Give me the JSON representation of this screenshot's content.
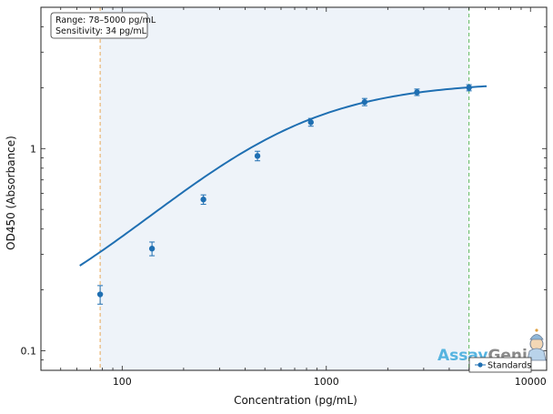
{
  "chart_data": {
    "type": "scatter",
    "title": "",
    "xlabel": "Concentration (pg/mL)",
    "ylabel": "OD450 (Absorbance)",
    "xscale": "log",
    "yscale": "log",
    "xlim": [
      40,
      12000
    ],
    "ylim": [
      0.08,
      5.0
    ],
    "xticks": [
      100,
      1000,
      10000
    ],
    "xtick_labels": [
      "100",
      "1000",
      "10000"
    ],
    "yticks": [
      0.1,
      1
    ],
    "ytick_labels": [
      "0.1",
      "1"
    ],
    "grid": false,
    "legend_placement": "bottom-right",
    "series": [
      {
        "name": "Standards",
        "color": "#1f6fb2",
        "x": [
          78,
          140,
          250,
          460,
          840,
          1540,
          2780,
          5000
        ],
        "y": [
          0.19,
          0.32,
          0.56,
          0.92,
          1.35,
          1.7,
          1.9,
          2.0
        ],
        "err_low": [
          0.02,
          0.025,
          0.03,
          0.05,
          0.06,
          0.07,
          0.07,
          0.07
        ],
        "err_high": [
          0.02,
          0.025,
          0.03,
          0.05,
          0.06,
          0.07,
          0.07,
          0.07
        ]
      }
    ],
    "fit_curve": {
      "color": "#1f6fb2",
      "x_start": 62,
      "x_end": 6100,
      "model": "4PL",
      "bottom": 0.1,
      "top": 2.15,
      "ec50": 520,
      "hill": 1.15
    },
    "range_lines": {
      "low": 78,
      "high": 5000,
      "low_color": "#e8a857",
      "high_color": "#5cb85c",
      "shade_color": "#eef3f9"
    },
    "annotation": {
      "lines": [
        "Range: 78–5000 pg/mL",
        "Sensitivity: 34 pg/mL"
      ]
    },
    "legend": {
      "entries": [
        "Standards"
      ]
    }
  },
  "watermark": {
    "part1": "Assay",
    "part2": "Genie",
    "color1": "#56b4e0",
    "color2": "#8a8a8a"
  }
}
